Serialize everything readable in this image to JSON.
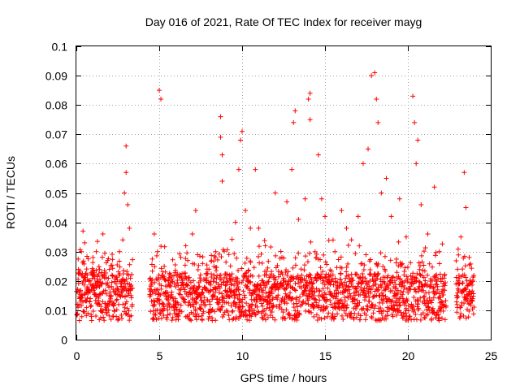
{
  "chart_data": {
    "type": "scatter",
    "title": "Day 016 of 2021, Rate Of TEC Index for receiver mayg",
    "xlabel": "GPS time / hours",
    "ylabel": "ROTI / TECUs",
    "xlim": [
      0,
      25
    ],
    "ylim": [
      0,
      0.1
    ],
    "xticks": [
      0,
      5,
      10,
      15,
      20,
      25
    ],
    "yticks": [
      0,
      0.01,
      0.02,
      0.03,
      0.04,
      0.05,
      0.06,
      0.07,
      0.08,
      0.09,
      0.1
    ],
    "xtick_labels": [
      "0",
      "5",
      "10",
      "15",
      "20",
      "25"
    ],
    "ytick_labels": [
      "0",
      "0.01",
      "0.02",
      "0.03",
      "0.04",
      "0.05",
      "0.06",
      "0.07",
      "0.08",
      "0.09",
      "0.1"
    ],
    "grid": true,
    "marker": "plus",
    "color": "#ff0000",
    "data_gaps_hours": [
      [
        3.4,
        4.4
      ],
      [
        22.3,
        22.9
      ]
    ],
    "points": [
      [
        0.1,
        0.011
      ],
      [
        0.2,
        0.014
      ],
      [
        0.3,
        0.03
      ],
      [
        0.4,
        0.037
      ],
      [
        0.5,
        0.033
      ],
      [
        0.6,
        0.016
      ],
      [
        0.7,
        0.009
      ],
      [
        0.8,
        0.013
      ],
      [
        1.0,
        0.028
      ],
      [
        1.2,
        0.03
      ],
      [
        1.4,
        0.018
      ],
      [
        1.6,
        0.036
      ],
      [
        1.8,
        0.011
      ],
      [
        2.0,
        0.015
      ],
      [
        2.2,
        0.012
      ],
      [
        2.4,
        0.019
      ],
      [
        2.6,
        0.03
      ],
      [
        2.8,
        0.034
      ],
      [
        2.9,
        0.05
      ],
      [
        3.0,
        0.057
      ],
      [
        3.0,
        0.066
      ],
      [
        3.1,
        0.046
      ],
      [
        3.2,
        0.038
      ],
      [
        3.3,
        0.015
      ],
      [
        4.5,
        0.02
      ],
      [
        4.7,
        0.036
      ],
      [
        4.9,
        0.03
      ],
      [
        5.0,
        0.085
      ],
      [
        5.1,
        0.082
      ],
      [
        5.3,
        0.025
      ],
      [
        5.6,
        0.012
      ],
      [
        6.0,
        0.018
      ],
      [
        6.3,
        0.028
      ],
      [
        6.6,
        0.032
      ],
      [
        7.0,
        0.036
      ],
      [
        7.2,
        0.044
      ],
      [
        7.5,
        0.02
      ],
      [
        8.0,
        0.024
      ],
      [
        8.4,
        0.03
      ],
      [
        8.7,
        0.076
      ],
      [
        8.7,
        0.069
      ],
      [
        8.8,
        0.054
      ],
      [
        8.8,
        0.063
      ],
      [
        9.2,
        0.029
      ],
      [
        9.6,
        0.04
      ],
      [
        9.8,
        0.058
      ],
      [
        9.9,
        0.068
      ],
      [
        10.0,
        0.071
      ],
      [
        10.2,
        0.044
      ],
      [
        10.5,
        0.038
      ],
      [
        10.8,
        0.058
      ],
      [
        11.0,
        0.038
      ],
      [
        11.4,
        0.032
      ],
      [
        12.0,
        0.05
      ],
      [
        12.4,
        0.028
      ],
      [
        12.7,
        0.047
      ],
      [
        13.0,
        0.058
      ],
      [
        13.1,
        0.074
      ],
      [
        13.2,
        0.078
      ],
      [
        13.4,
        0.041
      ],
      [
        13.8,
        0.048
      ],
      [
        14.0,
        0.082
      ],
      [
        14.1,
        0.084
      ],
      [
        14.1,
        0.075
      ],
      [
        14.4,
        0.03
      ],
      [
        14.6,
        0.063
      ],
      [
        14.8,
        0.048
      ],
      [
        15.0,
        0.042
      ],
      [
        15.3,
        0.016
      ],
      [
        15.6,
        0.03
      ],
      [
        16.0,
        0.044
      ],
      [
        16.3,
        0.038
      ],
      [
        16.6,
        0.034
      ],
      [
        17.0,
        0.042
      ],
      [
        17.3,
        0.06
      ],
      [
        17.6,
        0.065
      ],
      [
        17.8,
        0.09
      ],
      [
        18.0,
        0.091
      ],
      [
        18.1,
        0.082
      ],
      [
        18.2,
        0.074
      ],
      [
        18.4,
        0.05
      ],
      [
        18.7,
        0.055
      ],
      [
        19.0,
        0.042
      ],
      [
        19.5,
        0.048
      ],
      [
        19.9,
        0.035
      ],
      [
        20.3,
        0.083
      ],
      [
        20.4,
        0.074
      ],
      [
        20.5,
        0.06
      ],
      [
        20.6,
        0.068
      ],
      [
        20.8,
        0.046
      ],
      [
        21.2,
        0.036
      ],
      [
        21.6,
        0.052
      ],
      [
        21.9,
        0.03
      ],
      [
        22.1,
        0.012
      ],
      [
        23.0,
        0.024
      ],
      [
        23.2,
        0.035
      ],
      [
        23.4,
        0.057
      ],
      [
        23.5,
        0.045
      ],
      [
        23.7,
        0.028
      ],
      [
        23.9,
        0.014
      ]
    ]
  }
}
